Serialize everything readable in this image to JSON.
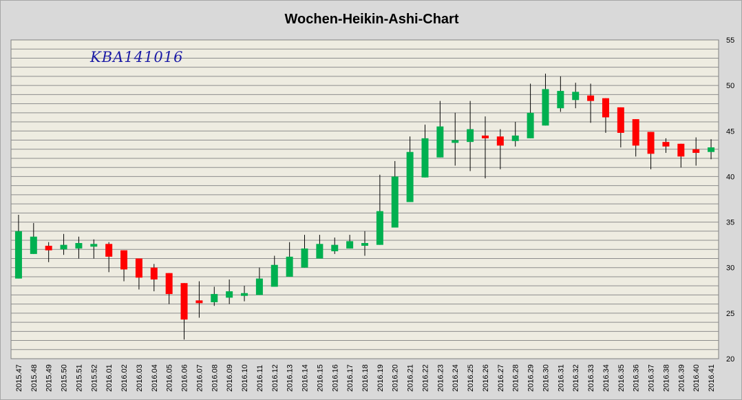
{
  "chart_data": {
    "type": "candlestick",
    "title": "Wochen-Heikin-Ashi-Chart",
    "annotation": "KBA141016",
    "ylim": [
      20,
      55
    ],
    "y_axis_position": "right",
    "y_ticks": [
      20,
      25,
      30,
      35,
      40,
      45,
      50,
      55
    ],
    "gridline_step": 1,
    "grid": true,
    "colors": {
      "up": "#00b050",
      "down": "#ff0000",
      "wick": "#000000",
      "plot_bg": "#eeece1",
      "grid": "#8c8c8c"
    },
    "candles": [
      {
        "x": "2015.47",
        "open": 28.8,
        "close": 34.0,
        "high": 35.8,
        "low": 28.8
      },
      {
        "x": "2015.48",
        "open": 31.5,
        "close": 33.4,
        "high": 34.9,
        "low": 31.5
      },
      {
        "x": "2015.49",
        "open": 32.4,
        "close": 31.9,
        "high": 32.8,
        "low": 30.6
      },
      {
        "x": "2015.50",
        "open": 32.0,
        "close": 32.5,
        "high": 33.7,
        "low": 31.4
      },
      {
        "x": "2015.51",
        "open": 32.1,
        "close": 32.7,
        "high": 33.4,
        "low": 31.0
      },
      {
        "x": "2015.52",
        "open": 32.3,
        "close": 32.6,
        "high": 33.1,
        "low": 31.0
      },
      {
        "x": "2016.01",
        "open": 32.6,
        "close": 31.2,
        "high": 32.8,
        "low": 29.5
      },
      {
        "x": "2016.02",
        "open": 31.9,
        "close": 29.8,
        "high": 31.9,
        "low": 28.5
      },
      {
        "x": "2016.03",
        "open": 31.0,
        "close": 28.9,
        "high": 31.0,
        "low": 27.6
      },
      {
        "x": "2016.04",
        "open": 30.0,
        "close": 28.7,
        "high": 30.4,
        "low": 27.4
      },
      {
        "x": "2016.05",
        "open": 29.4,
        "close": 27.1,
        "high": 29.4,
        "low": 26.0
      },
      {
        "x": "2016.06",
        "open": 28.3,
        "close": 24.3,
        "high": 28.3,
        "low": 22.1
      },
      {
        "x": "2016.07",
        "open": 26.4,
        "close": 26.1,
        "high": 28.5,
        "low": 24.5
      },
      {
        "x": "2016.08",
        "open": 26.2,
        "close": 27.1,
        "high": 27.9,
        "low": 25.8
      },
      {
        "x": "2016.09",
        "open": 26.7,
        "close": 27.4,
        "high": 28.7,
        "low": 26.0
      },
      {
        "x": "2016.10",
        "open": 26.9,
        "close": 27.2,
        "high": 28.0,
        "low": 26.3
      },
      {
        "x": "2016.11",
        "open": 27.0,
        "close": 28.8,
        "high": 30.0,
        "low": 27.0
      },
      {
        "x": "2016.12",
        "open": 27.9,
        "close": 30.3,
        "high": 31.3,
        "low": 27.9
      },
      {
        "x": "2016.13",
        "open": 29.0,
        "close": 31.2,
        "high": 32.8,
        "low": 29.0
      },
      {
        "x": "2016.14",
        "open": 30.0,
        "close": 32.1,
        "high": 33.6,
        "low": 30.0
      },
      {
        "x": "2016.15",
        "open": 31.0,
        "close": 32.6,
        "high": 33.6,
        "low": 31.0
      },
      {
        "x": "2016.16",
        "open": 31.8,
        "close": 32.5,
        "high": 33.3,
        "low": 31.5
      },
      {
        "x": "2016.17",
        "open": 32.1,
        "close": 32.9,
        "high": 33.6,
        "low": 32.1
      },
      {
        "x": "2016.18",
        "open": 32.4,
        "close": 32.7,
        "high": 34.0,
        "low": 31.3
      },
      {
        "x": "2016.19",
        "open": 32.5,
        "close": 36.2,
        "high": 40.2,
        "low": 32.5
      },
      {
        "x": "2016.20",
        "open": 34.4,
        "close": 40.0,
        "high": 41.7,
        "low": 34.4
      },
      {
        "x": "2016.21",
        "open": 37.2,
        "close": 42.7,
        "high": 44.4,
        "low": 37.2
      },
      {
        "x": "2016.22",
        "open": 39.9,
        "close": 44.2,
        "high": 45.7,
        "low": 39.9
      },
      {
        "x": "2016.23",
        "open": 42.1,
        "close": 45.5,
        "high": 48.3,
        "low": 42.1
      },
      {
        "x": "2016.24",
        "open": 43.7,
        "close": 44.0,
        "high": 47.0,
        "low": 41.2
      },
      {
        "x": "2016.25",
        "open": 43.8,
        "close": 45.2,
        "high": 48.3,
        "low": 40.6
      },
      {
        "x": "2016.26",
        "open": 44.5,
        "close": 44.2,
        "high": 46.6,
        "low": 39.8
      },
      {
        "x": "2016.27",
        "open": 44.4,
        "close": 43.4,
        "high": 45.2,
        "low": 40.8
      },
      {
        "x": "2016.28",
        "open": 43.9,
        "close": 44.5,
        "high": 46.0,
        "low": 43.3
      },
      {
        "x": "2016.29",
        "open": 44.2,
        "close": 47.0,
        "high": 50.2,
        "low": 44.2
      },
      {
        "x": "2016.30",
        "open": 45.6,
        "close": 49.6,
        "high": 51.3,
        "low": 45.6
      },
      {
        "x": "2016.31",
        "open": 47.5,
        "close": 49.4,
        "high": 51.0,
        "low": 47.1
      },
      {
        "x": "2016.32",
        "open": 48.4,
        "close": 49.3,
        "high": 50.3,
        "low": 47.5
      },
      {
        "x": "2016.33",
        "open": 48.9,
        "close": 48.3,
        "high": 50.2,
        "low": 45.9
      },
      {
        "x": "2016.34",
        "open": 48.6,
        "close": 46.5,
        "high": 48.6,
        "low": 44.8
      },
      {
        "x": "2016.35",
        "open": 47.6,
        "close": 44.8,
        "high": 47.6,
        "low": 43.2
      },
      {
        "x": "2016.36",
        "open": 46.3,
        "close": 43.4,
        "high": 46.3,
        "low": 42.2
      },
      {
        "x": "2016.37",
        "open": 44.9,
        "close": 42.5,
        "high": 44.9,
        "low": 40.8
      },
      {
        "x": "2016.38",
        "open": 43.8,
        "close": 43.3,
        "high": 44.2,
        "low": 42.6
      },
      {
        "x": "2016.39",
        "open": 43.6,
        "close": 42.2,
        "high": 43.6,
        "low": 41.0
      },
      {
        "x": "2016.40",
        "open": 43.0,
        "close": 42.6,
        "high": 44.3,
        "low": 41.2
      },
      {
        "x": "2016.41",
        "open": 42.7,
        "close": 43.2,
        "high": 44.1,
        "low": 41.9
      }
    ]
  }
}
